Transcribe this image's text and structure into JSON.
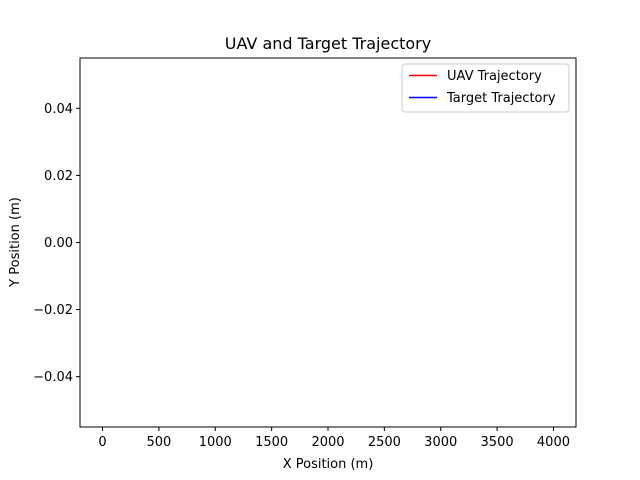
{
  "chart_data": {
    "type": "line",
    "title": "UAV and Target Trajectory",
    "xlabel": "X Position (m)",
    "ylabel": "Y Position (m)",
    "xlim": [
      -200,
      4200
    ],
    "ylim": [
      -0.055,
      0.055
    ],
    "x_ticks": [
      0,
      500,
      1000,
      1500,
      2000,
      2500,
      3000,
      3500,
      4000
    ],
    "x_tick_labels": [
      "0",
      "500",
      "1000",
      "1500",
      "2000",
      "2500",
      "3000",
      "3500",
      "4000"
    ],
    "y_ticks": [
      -0.04,
      -0.02,
      0.0,
      0.02,
      0.04
    ],
    "y_tick_labels": [
      "−0.04",
      "−0.02",
      "0.00",
      "0.02",
      "0.04"
    ],
    "grid": false,
    "legend_position": "top-right",
    "series": [
      {
        "name": "UAV Trajectory",
        "color": "#ff0000",
        "x": [],
        "y": []
      },
      {
        "name": "Target Trajectory",
        "color": "#0000ff",
        "x": [],
        "y": []
      }
    ]
  }
}
